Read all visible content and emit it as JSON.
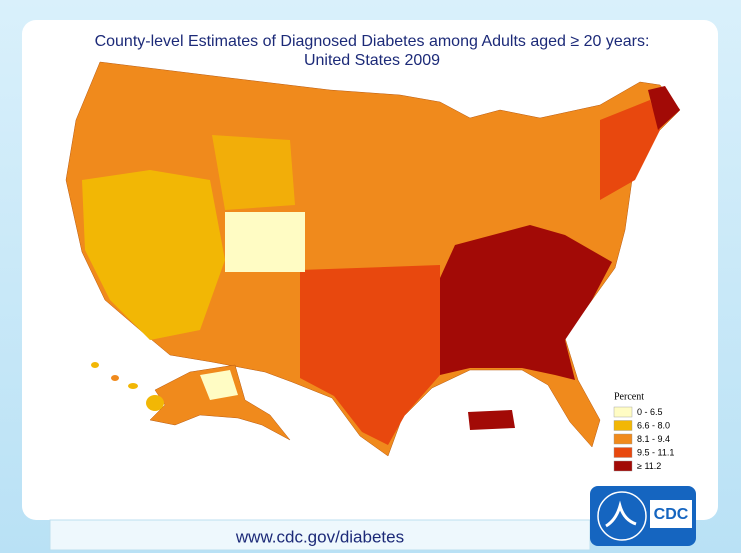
{
  "title": "County-level Estimates of Diagnosed Diabetes among Adults aged ≥ 20 years:",
  "subtitle": "United States 2009",
  "legend": {
    "title": "Percent",
    "items": [
      {
        "label": "0 - 6.5",
        "color": "#fffcc4"
      },
      {
        "label": "6.6 - 8.0",
        "color": "#f2b705"
      },
      {
        "label": "8.1 - 9.4",
        "color": "#f08a1c"
      },
      {
        "label": "9.5 - 11.1",
        "color": "#e8480e"
      },
      {
        "label": "≥ 11.2",
        "color": "#a20a06"
      }
    ]
  },
  "footer": {
    "url": "www.cdc.gov/diabetes"
  },
  "logo": {
    "text": "CDC"
  }
}
